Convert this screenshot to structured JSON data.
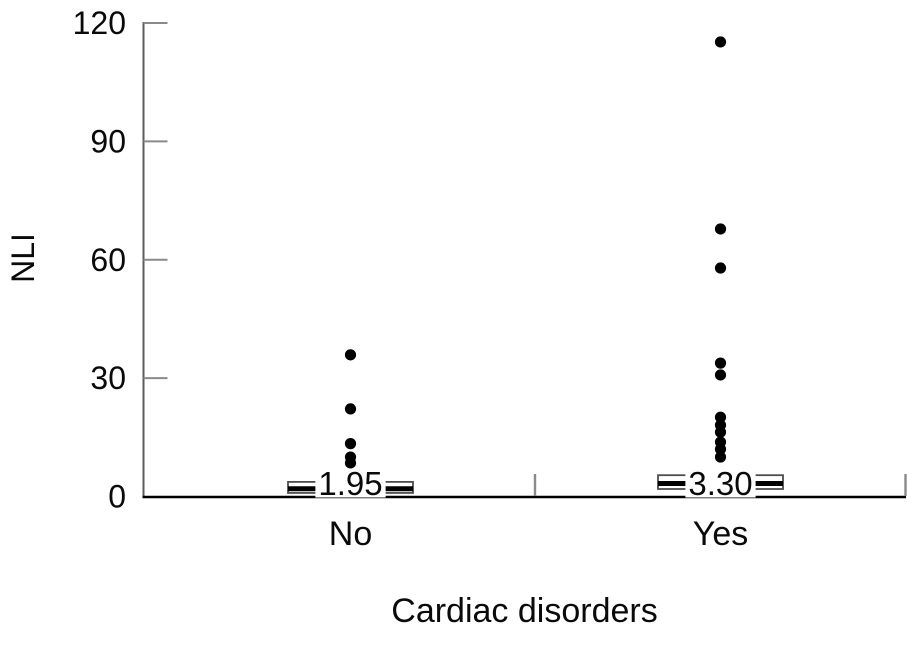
{
  "chart_data": {
    "type": "boxplot-with-points",
    "title": "",
    "ylabel": "NLI",
    "xlabel": "Cardiac disorders",
    "ylim": [
      0,
      120
    ],
    "yticks": [
      0,
      30,
      60,
      90,
      120
    ],
    "grid": false,
    "legend": false,
    "categories": [
      "No",
      "Yes"
    ],
    "groups": [
      {
        "label": "No",
        "median": 1.95,
        "median_label": "1.95",
        "q1": 0.9,
        "q3": 3.7,
        "outliers": [
          35.9,
          22.2,
          13.4,
          10.0,
          8.5
        ]
      },
      {
        "label": "Yes",
        "median": 3.3,
        "median_label": "3.30",
        "q1": 1.9,
        "q3": 5.4,
        "outliers": [
          115.2,
          67.8,
          57.9,
          33.8,
          30.8,
          20.1,
          18.1,
          16.3,
          13.8,
          12.0,
          10.0
        ]
      }
    ],
    "colors": {
      "dot": "#000000",
      "y_axis": "#5c5c5c",
      "tick": "#8a8a8a",
      "baseline": "#000000",
      "box_border": "#4d4d4d",
      "median_band": "#000000",
      "box_fill": "#ffffff",
      "text": "#0a0a0a"
    }
  }
}
